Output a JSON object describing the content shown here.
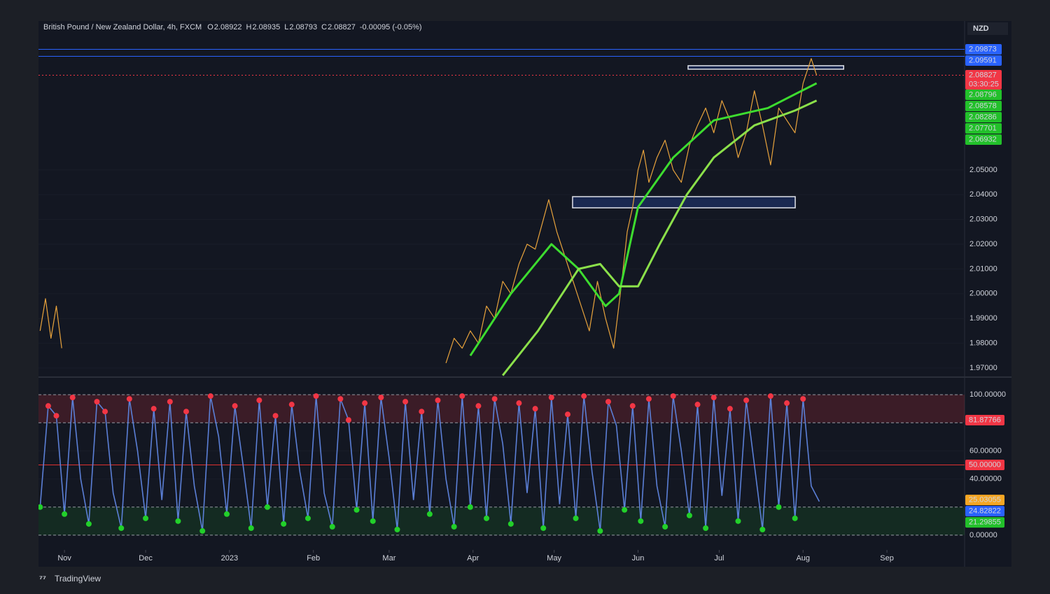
{
  "header": {
    "symbol": "British Pound / New Zealand Dollar, 4h, FXCM",
    "ohlc": [
      {
        "key": "O",
        "value": "2.08922"
      },
      {
        "key": "H",
        "value": "2.08935"
      },
      {
        "key": "L",
        "value": "2.08793"
      },
      {
        "key": "C",
        "value": "2.08827"
      }
    ],
    "change": "-0.00095 (-0.05%)"
  },
  "currency": "NZD",
  "branding": "TradingView",
  "chart_data": [
    {
      "type": "line",
      "xlim": [
        -9.6,
        332.7
      ],
      "xticks": [
        {
          "value": 0,
          "label": "Nov"
        },
        {
          "value": 30,
          "label": "Dec"
        },
        {
          "value": 61,
          "label": "2023"
        },
        {
          "value": 92,
          "label": "Feb"
        },
        {
          "value": 120,
          "label": "Mar"
        },
        {
          "value": 151,
          "label": "Apr"
        },
        {
          "value": 181,
          "label": "May"
        },
        {
          "value": 212,
          "label": "Jun"
        },
        {
          "value": 242,
          "label": "Jul"
        },
        {
          "value": 273,
          "label": "Aug"
        },
        {
          "value": 304,
          "label": "Sep"
        }
      ],
      "ylim": [
        1.9666,
        2.1096
      ],
      "yticks": [
        {
          "value": 1.97,
          "label": "1.97000"
        },
        {
          "value": 1.98,
          "label": "1.98000"
        },
        {
          "value": 1.99,
          "label": "1.99000"
        },
        {
          "value": 2.0,
          "label": "2.00000"
        },
        {
          "value": 2.01,
          "label": "2.01000"
        },
        {
          "value": 2.02,
          "label": "2.02000"
        },
        {
          "value": 2.03,
          "label": "2.03000"
        },
        {
          "value": 2.04,
          "label": "2.04000"
        },
        {
          "value": 2.05,
          "label": "2.05000"
        }
      ],
      "series": [
        {
          "name": "Price",
          "color": "#e8a33c",
          "x": [
            -9,
            -7,
            -5,
            -3,
            -1,
            1,
            141,
            144,
            147,
            150,
            153,
            156,
            159,
            162,
            165,
            168,
            171,
            174,
            177,
            179,
            182,
            185,
            188,
            191,
            194,
            197,
            200,
            203,
            206,
            208,
            210,
            212,
            214,
            216,
            219,
            222,
            225,
            228,
            231,
            234,
            237,
            240,
            243,
            246,
            249,
            252,
            255,
            258,
            261,
            264,
            267,
            270,
            273,
            276,
            278
          ],
          "values": [
            1.985,
            1.998,
            1.982,
            1.995,
            1.978,
            null,
            1.972,
            1.982,
            1.978,
            1.985,
            1.98,
            1.995,
            1.99,
            2.005,
            2.0,
            2.012,
            2.02,
            2.018,
            2.03,
            2.038,
            2.025,
            2.015,
            2.005,
            1.995,
            1.985,
            2.005,
            1.99,
            1.978,
            2.005,
            2.025,
            2.035,
            2.05,
            2.058,
            2.045,
            2.055,
            2.062,
            2.05,
            2.045,
            2.06,
            2.068,
            2.075,
            2.065,
            2.078,
            2.07,
            2.055,
            2.065,
            2.082,
            2.068,
            2.052,
            2.075,
            2.07,
            2.065,
            2.085,
            2.095,
            2.0883
          ]
        },
        {
          "name": "Fast MA",
          "color": "#3ddc2f",
          "x": [
            150,
            165,
            180,
            190,
            200,
            205,
            212,
            225,
            240,
            260,
            278
          ],
          "values": [
            1.975,
            2.0,
            2.02,
            2.01,
            1.995,
            2.0,
            2.035,
            2.055,
            2.07,
            2.075,
            2.085
          ]
        },
        {
          "name": "Slow MA",
          "color": "#8be04a",
          "x": [
            162,
            175,
            190,
            198,
            205,
            212,
            220,
            230,
            240,
            255,
            270,
            278
          ],
          "values": [
            1.967,
            1.985,
            2.01,
            2.012,
            2.003,
            2.003,
            2.02,
            2.04,
            2.055,
            2.068,
            2.074,
            2.078
          ]
        }
      ],
      "zones": [
        {
          "x": [
            187.8,
            270.1
          ],
          "y": [
            2.0347,
            2.0392
          ]
        },
        {
          "x": [
            230.5,
            288
          ],
          "y": [
            2.0907,
            2.0921
          ]
        }
      ],
      "price_tags": [
        {
          "value": 2.09873,
          "label": "2.09873",
          "color": "#2962ff"
        },
        {
          "value": 2.09591,
          "label": "2.09591",
          "color": "#2962ff"
        },
        {
          "value": 2.08827,
          "label": "2.08827",
          "color": "#f23645",
          "countdown": "03:30:25"
        },
        {
          "value": 2.08796,
          "label": "2.08796",
          "color": "#22c02a"
        },
        {
          "value": 2.08578,
          "label": "2.08578",
          "color": "#22c02a"
        },
        {
          "value": 2.08286,
          "label": "2.08286",
          "color": "#22c02a"
        },
        {
          "value": 2.07701,
          "label": "2.07701",
          "color": "#22c02a"
        },
        {
          "value": 2.06932,
          "label": "2.06932",
          "color": "#22c02a"
        }
      ]
    },
    {
      "type": "oscillator",
      "xlim": [
        -9.6,
        332.7
      ],
      "ylim": [
        -10,
        112
      ],
      "yticks": [
        {
          "value": 0,
          "label": "0.00000"
        },
        {
          "value": 40,
          "label": "40.00000"
        },
        {
          "value": 60,
          "label": "60.00000"
        },
        {
          "value": 100,
          "label": "100.00000"
        }
      ],
      "levels": [
        100,
        80,
        50,
        20,
        0
      ],
      "series": [
        {
          "name": "Oscillator",
          "color": "#5b7fd6",
          "x": [
            -9,
            -6,
            -3,
            0,
            3,
            6,
            9,
            12,
            15,
            18,
            21,
            24,
            27,
            30,
            33,
            36,
            39,
            42,
            45,
            48,
            51,
            54,
            57,
            60,
            63,
            66,
            69,
            72,
            75,
            78,
            81,
            84,
            87,
            90,
            93,
            96,
            99,
            102,
            105,
            108,
            111,
            114,
            117,
            120,
            123,
            126,
            129,
            132,
            135,
            138,
            141,
            144,
            147,
            150,
            153,
            156,
            159,
            162,
            165,
            168,
            171,
            174,
            177,
            180,
            183,
            186,
            189,
            192,
            195,
            198,
            201,
            204,
            207,
            210,
            213,
            216,
            219,
            222,
            225,
            228,
            231,
            234,
            237,
            240,
            243,
            246,
            249,
            252,
            255,
            258,
            261,
            264,
            267,
            270,
            273,
            276,
            279
          ],
          "values": [
            20,
            92,
            85,
            15,
            98,
            40,
            8,
            95,
            88,
            30,
            5,
            97,
            60,
            12,
            90,
            25,
            95,
            10,
            88,
            35,
            3,
            99,
            70,
            15,
            92,
            50,
            5,
            96,
            20,
            85,
            8,
            93,
            45,
            12,
            99,
            30,
            6,
            97,
            82,
            18,
            94,
            10,
            98,
            55,
            4,
            95,
            25,
            88,
            15,
            96,
            40,
            6,
            99,
            20,
            92,
            12,
            97,
            65,
            8,
            94,
            30,
            90,
            5,
            98,
            22,
            86,
            12,
            99,
            45,
            3,
            95,
            78,
            18,
            92,
            10,
            97,
            35,
            6,
            99,
            60,
            14,
            93,
            5,
            98,
            28,
            90,
            10,
            96,
            50,
            4,
            99,
            20,
            94,
            12,
            97,
            35,
            24
          ]
        }
      ],
      "value_tags": [
        {
          "value": 81.87766,
          "label": "81.87766",
          "color": "#f23645"
        },
        {
          "value": 50,
          "label": "50.00000",
          "color": "#f23645"
        },
        {
          "value": 25.03055,
          "label": "25.03055",
          "color": "#f5a623"
        },
        {
          "value": 24.82822,
          "label": "24.82822",
          "color": "#2962ff"
        },
        {
          "value": 21.29855,
          "label": "21.29855",
          "color": "#22c02a"
        }
      ]
    }
  ]
}
